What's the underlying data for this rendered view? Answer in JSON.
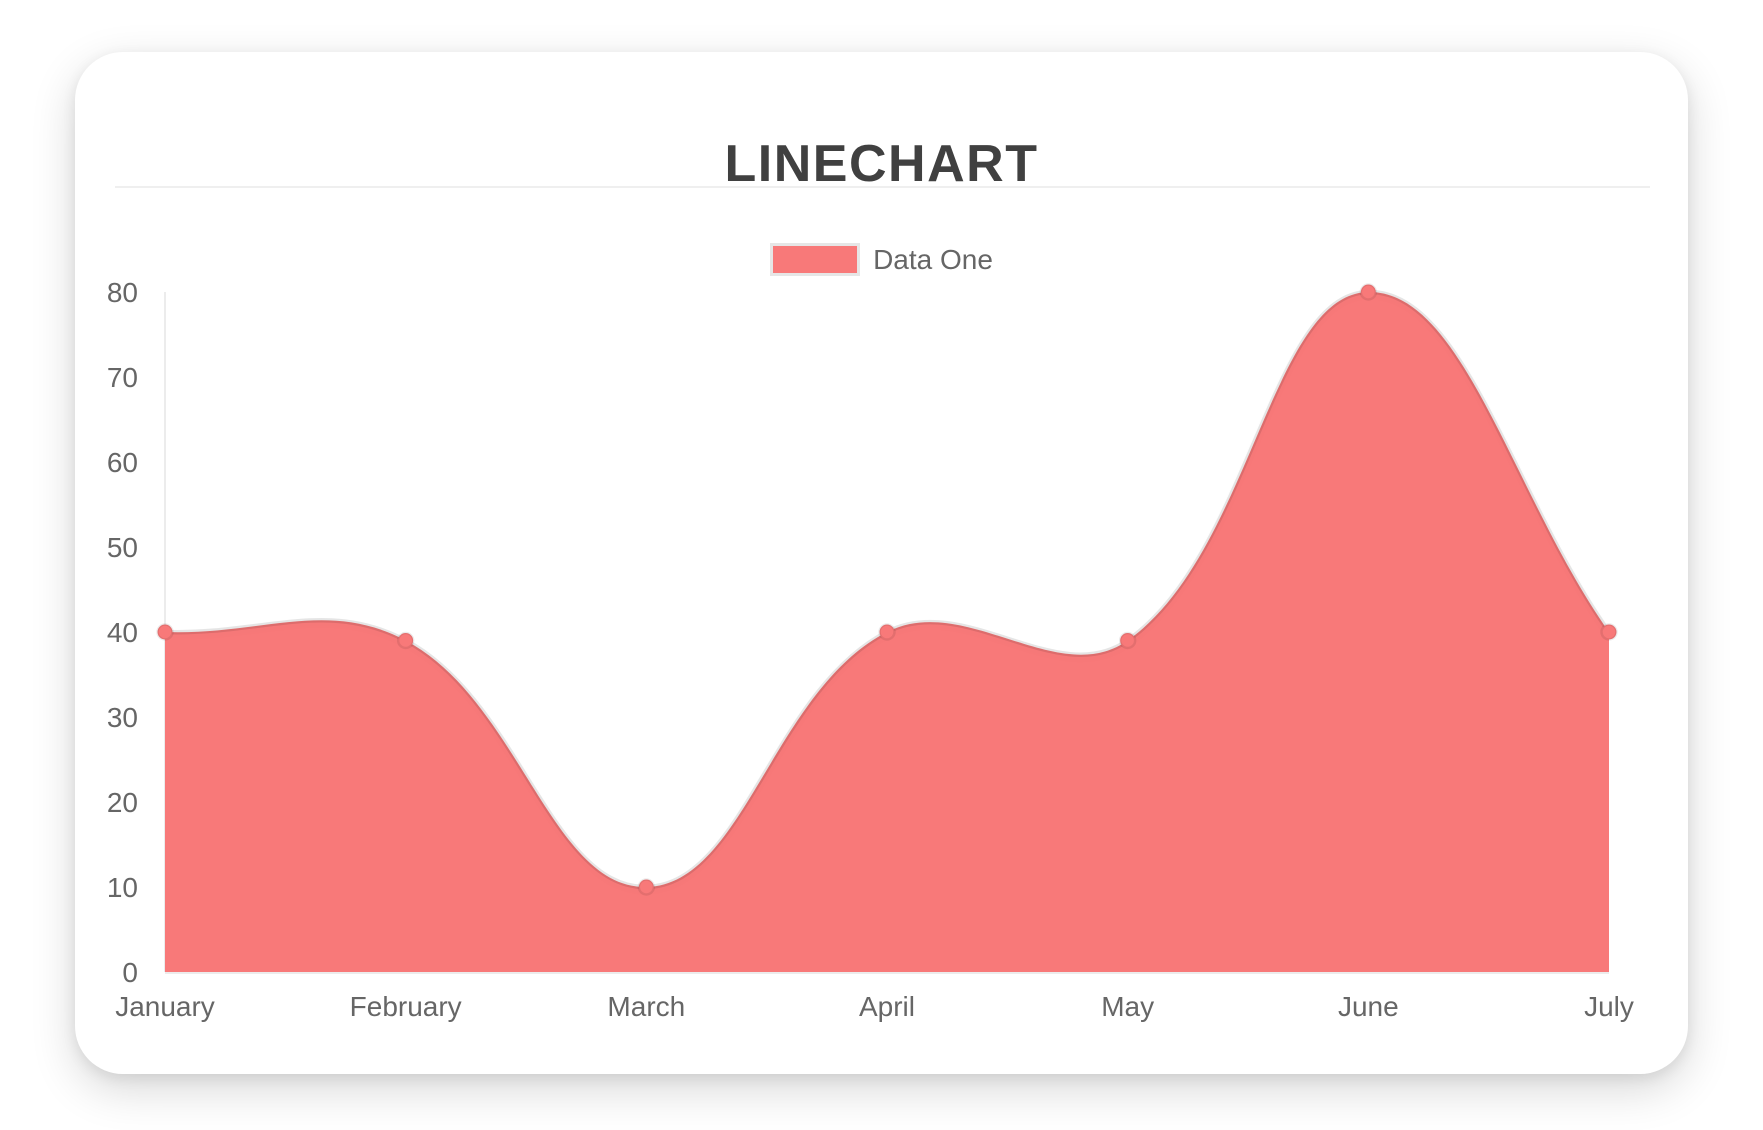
{
  "card": {
    "title": "LINECHART"
  },
  "legend": {
    "items": [
      {
        "label": "Data One",
        "color": "#f87979"
      }
    ]
  },
  "chart_data": {
    "type": "area",
    "title": "LINECHART",
    "categories": [
      "January",
      "February",
      "March",
      "April",
      "May",
      "June",
      "July"
    ],
    "series": [
      {
        "name": "Data One",
        "values": [
          40,
          39,
          10,
          40,
          39,
          80,
          40
        ],
        "color": "#f87979"
      }
    ],
    "xlabel": "",
    "ylabel": "",
    "ylim": [
      0,
      80
    ],
    "yticks": [
      0,
      10,
      20,
      30,
      40,
      50,
      60,
      70,
      80
    ],
    "grid": false,
    "legend_position": "top",
    "line_tension": 0.4,
    "line_border_color": "rgba(0,0,0,0.10)",
    "point_style": "circle"
  }
}
